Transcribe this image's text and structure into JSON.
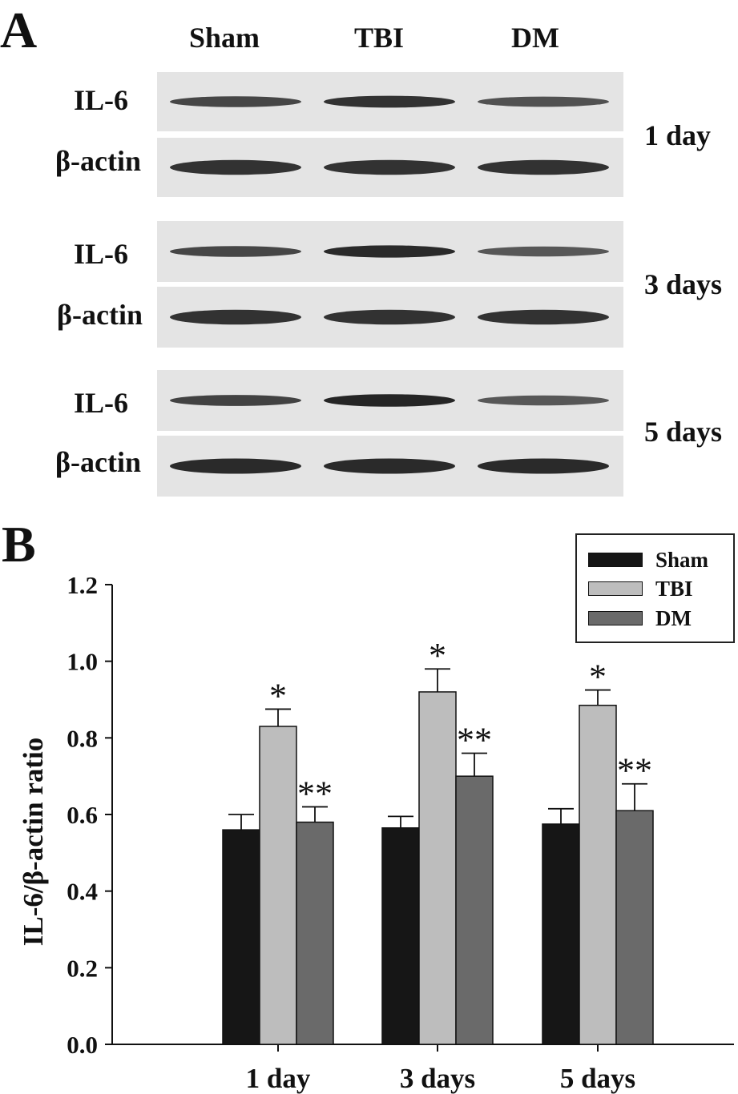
{
  "panel_a": {
    "letter": "A",
    "lanes": [
      "Sham",
      "TBI",
      "DM"
    ],
    "row_labels": {
      "target": "IL-6",
      "control": "β-actin"
    },
    "timepoints": [
      "1 day",
      "3 days",
      "5 days"
    ],
    "blots": [
      {
        "il6_intensity": [
          0.7,
          0.85,
          0.6
        ],
        "actin_intensity": [
          0.85,
          0.85,
          0.85
        ]
      },
      {
        "il6_intensity": [
          0.7,
          0.9,
          0.55
        ],
        "actin_intensity": [
          0.85,
          0.85,
          0.85
        ]
      },
      {
        "il6_intensity": [
          0.72,
          0.95,
          0.55
        ],
        "actin_intensity": [
          0.9,
          0.9,
          0.9
        ]
      }
    ]
  },
  "panel_b": {
    "letter": "B"
  },
  "colors": {
    "sham": "#161616",
    "tbi": "#bdbdbd",
    "dm": "#6a6a6a",
    "blot_bg": "#e4e4e4",
    "band": "#1e1e1e"
  },
  "chart_data": {
    "type": "bar",
    "categories": [
      "1 day",
      "3 days",
      "5 days"
    ],
    "series": [
      {
        "name": "Sham",
        "values": [
          0.56,
          0.565,
          0.575
        ],
        "errors": [
          0.04,
          0.03,
          0.04
        ],
        "annotations": [
          "",
          "",
          ""
        ]
      },
      {
        "name": "TBI",
        "values": [
          0.83,
          0.92,
          0.885
        ],
        "errors": [
          0.045,
          0.06,
          0.04
        ],
        "annotations": [
          "*",
          "*",
          "*"
        ]
      },
      {
        "name": "DM",
        "values": [
          0.58,
          0.7,
          0.61
        ],
        "errors": [
          0.04,
          0.06,
          0.07
        ],
        "annotations": [
          "**",
          "**",
          "**"
        ]
      }
    ],
    "ylabel": "IL-6/β-actin ratio",
    "xlabel": "",
    "ylim": [
      0,
      1.2
    ],
    "yticks": [
      "0.0",
      "0.2",
      "0.4",
      "0.6",
      "0.8",
      "1.0",
      "1.2"
    ],
    "legend_position": "top-right",
    "grid": false
  }
}
